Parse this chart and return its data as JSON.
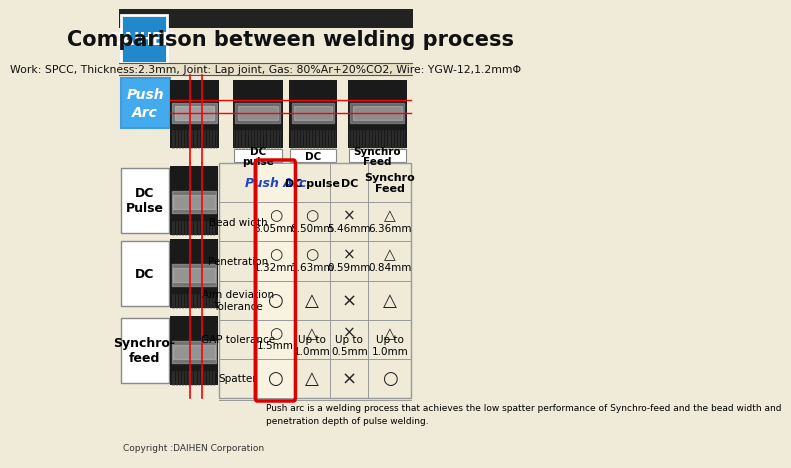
{
  "title": "Comparison between welding process",
  "subtitle": "Work: SPCC, Thickness:2.3mm, Joint: Lap joint, Gas: 80%Ar+20%CO2, Wire: YGW-12,1.2mmΦ",
  "bg_color": "#f0ead8",
  "table_header_row": [
    "Push Arc",
    "DC pulse",
    "DC",
    "Synchro\nFeed"
  ],
  "row_labels": [
    "Bead width",
    "Penetration",
    "Aim deviation\nTolerance",
    "GAP tolerance",
    "Spatter"
  ],
  "table_data": [
    [
      "○\n8.05mm",
      "○\n8.50mm",
      "×\n5.46mm",
      "△\n6.36mm"
    ],
    [
      "○\n1.32mm",
      "○\n1.63mm",
      "×\n0.59mm",
      "△\n0.84mm"
    ],
    [
      "○",
      "△",
      "×",
      "△"
    ],
    [
      "○\n1.5mm",
      "△\nUp to\n1.0mm",
      "×\nUp to\n0.5mm",
      "△\nUp to\n1.0mm"
    ],
    [
      "○",
      "△",
      "×",
      "○"
    ]
  ],
  "footer_text": "Push arc is a welding process that achieves the low spatter performance of Synchro-feed and the bead width and\npenetration depth of pulse welding.",
  "copyright": "Copyright :DAIHEN Corporation",
  "daihen_bg": "#2288cc",
  "red_border_color": "#dd0000",
  "table_line_color": "#999999",
  "push_arc_italic_color": "#2244cc",
  "top_labels": [
    "DC\npulse",
    "DC",
    "Synchro\nFeed"
  ],
  "left_process_labels": [
    "DC\nPulse",
    "DC",
    "Synchro-\nfeed"
  ],
  "title_color": "#111111",
  "subtitle_color": "#111111"
}
